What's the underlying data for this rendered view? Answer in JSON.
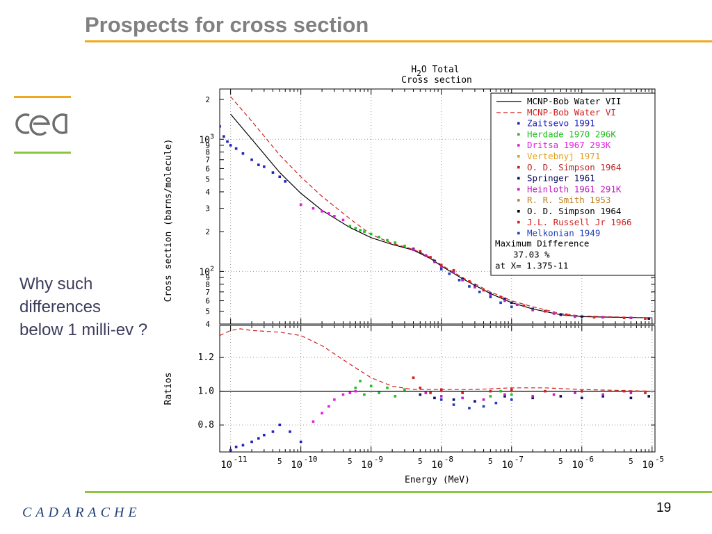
{
  "slide": {
    "title": "Prospects for cross section",
    "question_lines": [
      "Why such",
      "differences",
      "below 1 milli-ev ?"
    ],
    "footer_brand": "CADARACHE",
    "page_number": "19",
    "logo_text": "cea",
    "colors": {
      "title": "#808080",
      "accent_orange": "#f0a81c",
      "accent_green": "#8cc63f",
      "brand_blue": "#1f3f75",
      "question_text": "#3c3c5c"
    }
  },
  "chart_data": {
    "type": "scatter",
    "title_lines": [
      "H2O Total",
      "Cross section"
    ],
    "xlabel": "Energy (MeV)",
    "ylabel_top": "Cross section (barns/molecule)",
    "ylabel_bottom": "Ratios",
    "x_scale": "log",
    "xlim": [
      7e-12,
      1.1e-05
    ],
    "top_y_scale": "log",
    "top_ylim": [
      40,
      2400
    ],
    "bottom_ylim": [
      0.64,
      1.39
    ],
    "grid": true,
    "legend_position": "top-right",
    "x_tick_labels": [
      {
        "x": 1e-11,
        "base": "10",
        "exp": "-11"
      },
      {
        "x": 5e-11,
        "base": "5",
        "exp": ""
      },
      {
        "x": 1e-10,
        "base": "10",
        "exp": "-10"
      },
      {
        "x": 5e-10,
        "base": "5",
        "exp": ""
      },
      {
        "x": 1e-09,
        "base": "10",
        "exp": "-9"
      },
      {
        "x": 5e-09,
        "base": "5",
        "exp": ""
      },
      {
        "x": 1e-08,
        "base": "10",
        "exp": "-8"
      },
      {
        "x": 5e-08,
        "base": "5",
        "exp": ""
      },
      {
        "x": 1e-07,
        "base": "10",
        "exp": "-7"
      },
      {
        "x": 5e-07,
        "base": "5",
        "exp": ""
      },
      {
        "x": 1e-06,
        "base": "10",
        "exp": "-6"
      },
      {
        "x": 5e-06,
        "base": "5",
        "exp": ""
      },
      {
        "x": 1e-05,
        "base": "10",
        "exp": "-5"
      }
    ],
    "top_y_tick_labels": [
      {
        "y": 2000,
        "text": "2"
      },
      {
        "y": 1000,
        "text": "10",
        "exp": "3"
      },
      {
        "y": 900,
        "text": "9"
      },
      {
        "y": 800,
        "text": "8"
      },
      {
        "y": 700,
        "text": "7"
      },
      {
        "y": 600,
        "text": "6"
      },
      {
        "y": 500,
        "text": "5"
      },
      {
        "y": 400,
        "text": "4"
      },
      {
        "y": 300,
        "text": "3"
      },
      {
        "y": 200,
        "text": "2"
      },
      {
        "y": 100,
        "text": "10",
        "exp": "2"
      },
      {
        "y": 90,
        "text": "9"
      },
      {
        "y": 80,
        "text": "8"
      },
      {
        "y": 70,
        "text": "7"
      },
      {
        "y": 60,
        "text": "6"
      },
      {
        "y": 50,
        "text": "5"
      },
      {
        "y": 40,
        "text": "4"
      }
    ],
    "bottom_y_tick_labels": [
      {
        "y": 1.2,
        "text": "1.2"
      },
      {
        "y": 1.0,
        "text": "1.0"
      },
      {
        "y": 0.8,
        "text": "0.8"
      }
    ],
    "legend": [
      {
        "name": "MCNP-Bob Water VII",
        "color": "#000000",
        "style": "solid"
      },
      {
        "name": "MCNP-Bob Water VI",
        "color": "#d02020",
        "style": "dashed"
      },
      {
        "name": "Zaitsevo 1991",
        "color": "#2020c0",
        "style": "marker"
      },
      {
        "name": "Herdade 1970 296K",
        "color": "#20c020",
        "style": "marker"
      },
      {
        "name": "Dritsa  1967 293K",
        "color": "#e020e0",
        "style": "marker"
      },
      {
        "name": "Vertebnyj 1971",
        "color": "#e0a020",
        "style": "marker"
      },
      {
        "name": "O. D. Simpson 1964",
        "color": "#c02020",
        "style": "marker"
      },
      {
        "name": "Springer 1961",
        "color": "#101060",
        "style": "marker"
      },
      {
        "name": "Heinloth 1961 291K",
        "color": "#c020c0",
        "style": "marker"
      },
      {
        "name": "R. R. Smith 1953",
        "color": "#c08020",
        "style": "marker"
      },
      {
        "name": "O. D. Simpson 1964",
        "color": "#000000",
        "style": "marker"
      },
      {
        "name": "J.L. Russell Jr 1966",
        "color": "#d02020",
        "style": "marker"
      },
      {
        "name": "Melkonian 1949",
        "color": "#2040c0",
        "style": "marker"
      }
    ],
    "annotation_lines": [
      "Maximum Difference",
      "37.03 %",
      "at X= 1.375-11"
    ],
    "series": [
      {
        "name": "MCNP-Bob Water VII",
        "color": "#000000",
        "kind": "line",
        "dash": "",
        "x": [
          1e-11,
          2e-11,
          5e-11,
          1e-10,
          2e-10,
          5e-10,
          1e-09,
          2e-09,
          4e-09,
          7e-09,
          1e-08,
          2e-08,
          5e-08,
          1e-07,
          2e-07,
          5e-07,
          1e-06,
          1e-05
        ],
        "y": [
          1550,
          1000,
          560,
          390,
          290,
          215,
          180,
          160,
          145,
          125,
          110,
          88,
          68,
          58,
          52,
          47,
          45.5,
          44.5
        ]
      },
      {
        "name": "MCNP-Bob Water VI",
        "color": "#d02020",
        "kind": "line",
        "dash": "6,4",
        "x": [
          1e-11,
          2e-11,
          5e-11,
          1e-10,
          2e-10,
          5e-10,
          1e-09,
          2e-09,
          4e-09,
          7e-09,
          1e-08,
          2e-08,
          5e-08,
          1e-07,
          2e-07,
          5e-07,
          1e-06,
          1e-05
        ],
        "y": [
          2100,
          1370,
          760,
          520,
          370,
          250,
          190,
          163,
          147,
          128,
          112,
          90,
          70,
          60,
          54,
          48,
          46,
          44.5
        ]
      },
      {
        "name": "Zaitsevo 1991",
        "color": "#2020c0",
        "kind": "marker",
        "x": [
          7e-12,
          8e-12,
          9e-12,
          1e-11,
          1.2e-11,
          1.5e-11,
          2e-11,
          2.5e-11,
          3e-11,
          4e-11,
          5e-11,
          6e-11
        ],
        "y": [
          1250,
          1050,
          960,
          900,
          850,
          780,
          700,
          640,
          620,
          560,
          520,
          480
        ]
      },
      {
        "name": "Herdade 1970 296K",
        "color": "#20c020",
        "kind": "marker",
        "x": [
          5e-10,
          6e-10,
          7e-10,
          8e-10,
          1e-09,
          1.3e-09,
          1.7e-09,
          2.2e-09,
          3e-09,
          4e-09
        ],
        "y": [
          220,
          212,
          205,
          200,
          192,
          182,
          172,
          165,
          156,
          148
        ]
      },
      {
        "name": "Dritsa  1967 293K",
        "color": "#e020e0",
        "kind": "marker",
        "x": [
          1e-10,
          1.5e-10,
          2e-10,
          2.5e-10,
          3e-10,
          4e-10
        ],
        "y": [
          320,
          300,
          285,
          275,
          262,
          245
        ]
      },
      {
        "name": "Springer 1961",
        "color": "#101060",
        "kind": "marker",
        "x": [
          4e-09,
          5e-09,
          6e-09,
          8e-09,
          1e-08,
          1.5e-08,
          2e-08,
          3e-08,
          5e-08,
          8e-08,
          1e-07,
          2e-07,
          3e-07,
          5e-07,
          1e-06,
          2e-06,
          5e-06,
          9e-06
        ],
        "y": [
          148,
          140,
          132,
          120,
          110,
          100,
          88,
          78,
          68,
          62,
          58,
          52,
          50,
          47,
          45.5,
          45,
          44.5,
          44
        ]
      },
      {
        "name": "Heinloth 1961 291K",
        "color": "#c020c0",
        "kind": "marker",
        "x": [
          4e-09,
          6e-09,
          8e-09,
          1e-08,
          1.5e-08,
          2e-08,
          3e-08,
          5e-08,
          8e-08,
          1.2e-07,
          2e-07,
          4e-07,
          8e-07,
          2e-06,
          5e-06
        ],
        "y": [
          146,
          132,
          118,
          108,
          98,
          86,
          76,
          66,
          60,
          56,
          51,
          48,
          45.5,
          45,
          44.5
        ]
      },
      {
        "name": "J.L. Russell Jr 1966",
        "color": "#d02020",
        "kind": "marker",
        "x": [
          5e-09,
          7e-09,
          1e-08,
          1.5e-08,
          2.5e-08,
          4e-08,
          7e-08,
          1.5e-07,
          3e-07,
          6e-07,
          1.5e-06,
          4e-06,
          8e-06
        ],
        "y": [
          142,
          128,
          112,
          102,
          84,
          72,
          64,
          55,
          50,
          47,
          45,
          44.5,
          44
        ]
      },
      {
        "name": "Melkonian 1949",
        "color": "#2040c0",
        "kind": "marker",
        "x": [
          1e-08,
          1.3e-08,
          1.8e-08,
          2.5e-08,
          3.5e-08,
          5e-08,
          7e-08,
          1e-07
        ],
        "y": [
          104,
          96,
          86,
          77,
          70,
          64,
          58,
          54
        ]
      }
    ],
    "ratio_series": [
      {
        "name": "MCNP-Bob Water VII",
        "color": "#000000",
        "kind": "line",
        "dash": "",
        "x": [
          7e-12,
          1e-05
        ],
        "y": [
          1.0,
          1.0
        ]
      },
      {
        "name": "MCNP-Bob Water VI",
        "color": "#d02020",
        "kind": "line",
        "dash": "6,4",
        "x": [
          7e-12,
          1e-11,
          1.375e-11,
          2e-11,
          5e-11,
          1e-10,
          2e-10,
          5e-10,
          1e-09,
          2e-09,
          4e-09,
          1e-08,
          3e-08,
          1e-07,
          3e-07,
          1e-06,
          1e-05
        ],
        "y": [
          1.33,
          1.36,
          1.37,
          1.36,
          1.35,
          1.33,
          1.27,
          1.16,
          1.08,
          1.03,
          1.01,
          1.01,
          1.01,
          1.02,
          1.02,
          1.01,
          1.0
        ]
      },
      {
        "name": "Zaitsevo 1991",
        "color": "#2020c0",
        "kind": "marker",
        "x": [
          1e-11,
          1.2e-11,
          1.5e-11,
          2e-11,
          2.5e-11,
          3e-11,
          4e-11,
          5e-11,
          7e-11,
          1e-10
        ],
        "y": [
          0.65,
          0.67,
          0.68,
          0.7,
          0.72,
          0.74,
          0.76,
          0.8,
          0.76,
          0.7
        ]
      },
      {
        "name": "Herdade 1970 296K",
        "color": "#20c020",
        "kind": "marker",
        "x": [
          6e-10,
          7e-10,
          8e-10,
          1e-09,
          1.3e-09,
          1.7e-09,
          2.2e-09,
          3e-09,
          5e-08,
          7e-08,
          1e-07
        ],
        "y": [
          1.02,
          1.06,
          0.98,
          1.03,
          0.99,
          1.02,
          0.97,
          1.01,
          0.97,
          1.0,
          0.98
        ]
      },
      {
        "name": "Dritsa  1967 293K",
        "color": "#e020e0",
        "kind": "marker",
        "x": [
          1.5e-10,
          2e-10,
          2.5e-10,
          3e-10,
          4e-10,
          5e-10,
          6e-10
        ],
        "y": [
          0.82,
          0.87,
          0.91,
          0.95,
          0.98,
          0.99,
          1.0
        ]
      },
      {
        "name": "Springer 1961",
        "color": "#101060",
        "kind": "marker",
        "x": [
          5e-09,
          8e-09,
          1.5e-08,
          3e-08,
          8e-08,
          2e-07,
          5e-07,
          1e-06,
          2e-06,
          5e-06,
          9e-06
        ],
        "y": [
          0.98,
          0.96,
          0.95,
          0.94,
          0.97,
          0.96,
          0.97,
          0.96,
          0.97,
          0.96,
          0.97
        ]
      },
      {
        "name": "Heinloth 1961 291K",
        "color": "#c020c0",
        "kind": "marker",
        "x": [
          6e-09,
          1e-08,
          2e-08,
          4e-08,
          8e-08,
          2e-07,
          4e-07,
          8e-07,
          2e-06,
          5e-06
        ],
        "y": [
          0.99,
          0.97,
          0.96,
          0.95,
          0.98,
          0.97,
          0.98,
          0.99,
          0.98,
          0.99
        ]
      },
      {
        "name": "Melkonian 1949",
        "color": "#2040c0",
        "kind": "marker",
        "x": [
          1e-08,
          1.5e-08,
          2.5e-08,
          4e-08,
          6e-08,
          1e-07
        ],
        "y": [
          0.95,
          0.92,
          0.9,
          0.91,
          0.93,
          0.95
        ]
      },
      {
        "name": "J.L. Russell Jr 1966",
        "color": "#d02020",
        "kind": "marker",
        "x": [
          4e-09,
          5e-09,
          7e-09,
          1e-08,
          2e-08,
          5e-08,
          1e-07,
          3e-07,
          1e-06,
          4e-06,
          8e-06
        ],
        "y": [
          1.08,
          1.02,
          0.99,
          1.01,
          0.99,
          1.0,
          1.01,
          1.0,
          1.0,
          1.0,
          0.99
        ]
      }
    ]
  }
}
